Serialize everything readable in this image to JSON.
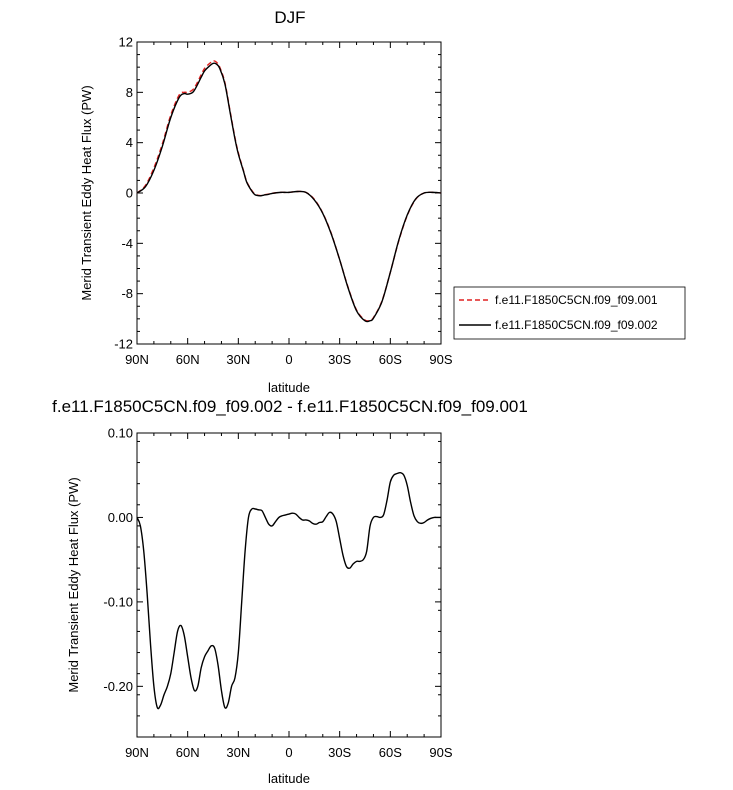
{
  "chart_data": [
    {
      "type": "line",
      "title": "DJF",
      "xlabel": "latitude",
      "ylabel": "Merid Transient Eddy Heat Flux (PW)",
      "xlim": [
        90,
        -90
      ],
      "ylim": [
        -12,
        12
      ],
      "x_tick_values": [
        90,
        60,
        30,
        0,
        -30,
        -60,
        -90
      ],
      "x_tick_labels": [
        "90N",
        "60N",
        "30N",
        "0",
        "30S",
        "60S",
        "90S"
      ],
      "y_tick_values": [
        12,
        8,
        4,
        0,
        -4,
        -8,
        -12
      ],
      "y_tick_labels": [
        "12",
        "8",
        "4",
        "0",
        "-4",
        "-8",
        "-12"
      ],
      "legend_position": "right",
      "series": [
        {
          "name": "f.e11.F1850C5CN.f09_f09.001",
          "color": "#e02020",
          "dash": "dashed",
          "x": [
            90,
            85,
            80,
            75,
            70,
            65,
            62,
            60,
            57,
            55,
            52,
            50,
            47,
            45,
            43,
            41,
            38,
            35,
            32,
            30,
            27,
            25,
            22,
            20,
            17,
            15,
            12,
            10,
            5,
            0,
            -5,
            -10,
            -15,
            -20,
            -25,
            -30,
            -35,
            -40,
            -45,
            -48,
            -50,
            -55,
            -60,
            -65,
            -70,
            -75,
            -80,
            -85,
            -90
          ],
          "y": [
            0.0,
            0.6,
            2.0,
            3.9,
            6.2,
            7.8,
            8.0,
            8.0,
            8.2,
            8.6,
            9.4,
            9.9,
            10.3,
            10.5,
            10.4,
            10.0,
            8.8,
            6.6,
            4.4,
            3.2,
            1.8,
            0.9,
            0.2,
            -0.1,
            -0.2,
            -0.15,
            -0.08,
            -0.02,
            0.05,
            0.05,
            0.12,
            0.05,
            -0.5,
            -1.6,
            -3.2,
            -5.3,
            -7.5,
            -9.3,
            -10.1,
            -10.1,
            -9.9,
            -8.6,
            -6.3,
            -3.8,
            -1.8,
            -0.5,
            0.0,
            0.05,
            0.0
          ]
        },
        {
          "name": "f.e11.F1850C5CN.f09_f09.002",
          "color": "#000000",
          "dash": "solid",
          "x": [
            90,
            85,
            80,
            75,
            70,
            65,
            62,
            60,
            57,
            55,
            52,
            50,
            47,
            45,
            43,
            41,
            38,
            35,
            32,
            30,
            27,
            25,
            22,
            20,
            17,
            15,
            12,
            10,
            5,
            0,
            -5,
            -10,
            -15,
            -20,
            -25,
            -30,
            -35,
            -40,
            -45,
            -48,
            -50,
            -55,
            -60,
            -65,
            -70,
            -75,
            -80,
            -85,
            -90
          ],
          "y": [
            0.0,
            0.5,
            1.8,
            3.7,
            6.0,
            7.6,
            7.9,
            7.85,
            8.0,
            8.4,
            9.2,
            9.7,
            10.1,
            10.3,
            10.25,
            9.9,
            8.7,
            6.5,
            4.3,
            3.1,
            1.75,
            0.85,
            0.15,
            -0.15,
            -0.22,
            -0.17,
            -0.1,
            -0.03,
            0.05,
            0.05,
            0.12,
            0.05,
            -0.55,
            -1.62,
            -3.25,
            -5.3,
            -7.55,
            -9.36,
            -10.16,
            -10.15,
            -9.95,
            -8.65,
            -6.3,
            -3.75,
            -1.75,
            -0.47,
            0.0,
            0.05,
            0.0
          ]
        }
      ]
    },
    {
      "type": "line",
      "title": "f.e11.F1850C5CN.f09_f09.002 - f.e11.F1850C5CN.f09_f09.001",
      "xlabel": "latitude",
      "ylabel": "Merid Transient Eddy Heat Flux (PW)",
      "xlim": [
        90,
        -90
      ],
      "ylim": [
        -0.26,
        0.1
      ],
      "x_tick_values": [
        90,
        60,
        30,
        0,
        -30,
        -60,
        -90
      ],
      "x_tick_labels": [
        "90N",
        "60N",
        "30N",
        "0",
        "30S",
        "60S",
        "90S"
      ],
      "y_tick_values": [
        0.1,
        0.0,
        -0.1,
        -0.2
      ],
      "y_tick_labels": [
        "0.10",
        "0.00",
        "-0.10",
        "-0.20"
      ],
      "series": [
        {
          "color": "#000000",
          "x": [
            90,
            88,
            86,
            84,
            82,
            80,
            78,
            76,
            74,
            72,
            70,
            68,
            66,
            64,
            62,
            60,
            58,
            56,
            54,
            52,
            50,
            48,
            46,
            44,
            42,
            40,
            38,
            36,
            34,
            32,
            30,
            28,
            26,
            24,
            22,
            20,
            18,
            16,
            14,
            12,
            10,
            8,
            6,
            4,
            2,
            0,
            -2,
            -4,
            -6,
            -8,
            -10,
            -12,
            -14,
            -16,
            -18,
            -20,
            -22,
            -24,
            -26,
            -28,
            -30,
            -32,
            -34,
            -36,
            -38,
            -40,
            -42,
            -44,
            -46,
            -48,
            -50,
            -52,
            -54,
            -56,
            -58,
            -60,
            -62,
            -64,
            -66,
            -68,
            -70,
            -72,
            -74,
            -76,
            -78,
            -80,
            -82,
            -84,
            -86,
            -88,
            -90
          ],
          "y": [
            0.0,
            -0.01,
            -0.04,
            -0.09,
            -0.15,
            -0.2,
            -0.225,
            -0.222,
            -0.21,
            -0.2,
            -0.185,
            -0.16,
            -0.135,
            -0.128,
            -0.14,
            -0.165,
            -0.19,
            -0.205,
            -0.2,
            -0.178,
            -0.165,
            -0.158,
            -0.152,
            -0.155,
            -0.175,
            -0.205,
            -0.225,
            -0.22,
            -0.2,
            -0.19,
            -0.16,
            -0.1,
            -0.04,
            0.0,
            0.01,
            0.01,
            0.009,
            0.008,
            0.0,
            -0.008,
            -0.01,
            -0.005,
            0.0,
            0.002,
            0.003,
            0.004,
            0.005,
            0.004,
            0.0,
            -0.003,
            -0.003,
            -0.004,
            -0.007,
            -0.008,
            -0.006,
            -0.005,
            0.001,
            0.006,
            0.004,
            -0.005,
            -0.025,
            -0.045,
            -0.058,
            -0.06,
            -0.055,
            -0.052,
            -0.052,
            -0.05,
            -0.04,
            -0.01,
            0.0,
            0.001,
            0.0,
            0.003,
            0.02,
            0.042,
            0.05,
            0.052,
            0.053,
            0.05,
            0.038,
            0.018,
            0.002,
            -0.005,
            -0.007,
            -0.006,
            -0.003,
            -0.001,
            0.0,
            0.0,
            0.0
          ]
        }
      ]
    }
  ]
}
